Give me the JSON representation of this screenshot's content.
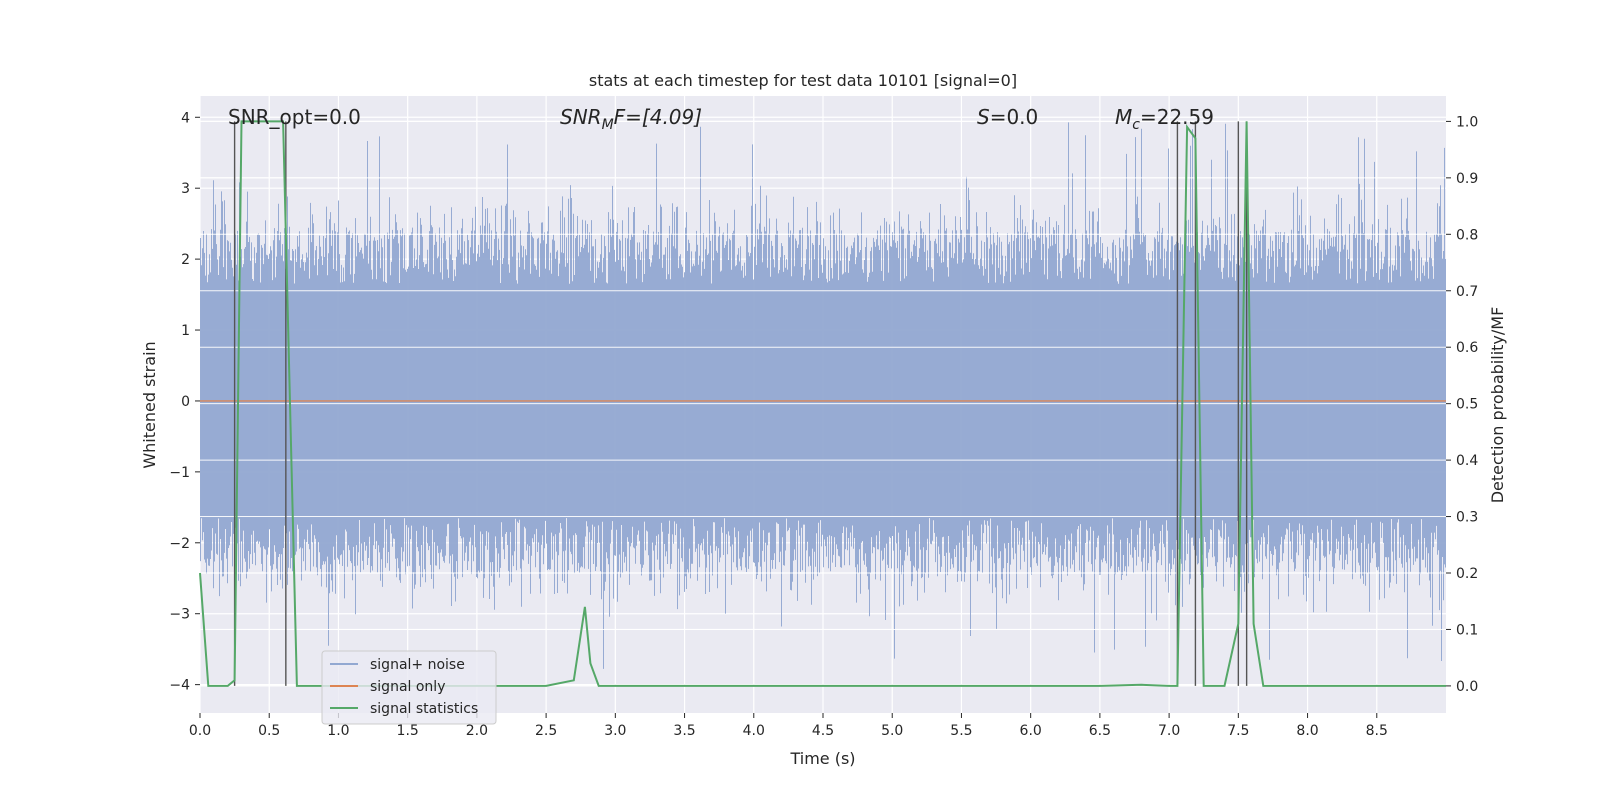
{
  "chart_data": {
    "type": "line",
    "title": "stats at each timestep for test data 10101 [signal=0]",
    "xlabel": "Time (s)",
    "ylabel": "Whitened strain",
    "ylabel_right": "Detection probability/MF",
    "xlim": [
      0.0,
      9.0
    ],
    "ylim": [
      -4.4,
      4.3
    ],
    "ylim_right": [
      -0.048,
      1.045
    ],
    "x_ticks": [
      0.0,
      0.5,
      1.0,
      1.5,
      2.0,
      2.5,
      3.0,
      3.5,
      4.0,
      4.5,
      5.0,
      5.5,
      6.0,
      6.5,
      7.0,
      7.5,
      8.0,
      8.5
    ],
    "x_tick_labels": [
      "0.0",
      "0.5",
      "1.0",
      "1.5",
      "2.0",
      "2.5",
      "3.0",
      "3.5",
      "4.0",
      "4.5",
      "5.0",
      "5.5",
      "6.0",
      "6.5",
      "7.0",
      "7.5",
      "8.0",
      "8.5"
    ],
    "y_ticks": [
      4,
      3,
      2,
      1,
      0,
      -1,
      -2,
      -3,
      -4
    ],
    "y_tick_labels": [
      "4",
      "3",
      "2",
      "1",
      "0",
      "−1",
      "−2",
      "−3",
      "−4"
    ],
    "y_right_ticks": [
      1.0,
      0.9,
      0.8,
      0.7,
      0.6,
      0.5,
      0.4,
      0.3,
      0.2,
      0.1,
      0.0
    ],
    "y_right_tick_labels": [
      "1.0",
      "0.9",
      "0.8",
      "0.7",
      "0.6",
      "0.5",
      "0.4",
      "0.3",
      "0.2",
      "0.1",
      "0.0"
    ],
    "grid": true,
    "legend_position": "lower-left",
    "annotations": {
      "snr_opt": "SNR_opt=0.0",
      "snr_mf_prefix": "SNR",
      "snr_mf_sub": "M",
      "snr_mf_suffix": "F=[4.09]",
      "s_prefix": "S",
      "s_value": "=0.0",
      "mc_prefix": "M",
      "mc_sub": "c",
      "mc_value": "=22.59"
    },
    "vertical_lines_x": [
      0.25,
      0.62,
      7.06,
      7.19,
      7.5,
      7.56
    ],
    "series": [
      {
        "name": "signal+ noise",
        "color": "#92a8d1",
        "band_envelope": {
          "x": [
            0.0,
            9.0
          ],
          "typical_peak_abs": 2.2,
          "max_positive": 3.95,
          "min_negative": -3.85
        }
      },
      {
        "name": "signal only",
        "color": "#dd8452",
        "x": [
          0.0,
          9.0
        ],
        "y": [
          0.0,
          0.0
        ]
      },
      {
        "name": "signal statistics",
        "color": "#55a868",
        "axis": "right",
        "x": [
          0.0,
          0.06,
          0.2,
          0.25,
          0.3,
          0.6,
          0.7,
          1.0,
          2.0,
          2.5,
          2.7,
          2.78,
          2.82,
          2.88,
          3.0,
          6.5,
          6.8,
          7.0,
          7.06,
          7.13,
          7.19,
          7.25,
          7.4,
          7.5,
          7.56,
          7.61,
          7.68,
          8.0,
          9.0
        ],
        "y": [
          0.2,
          0.0,
          0.0,
          0.01,
          1.0,
          1.0,
          0.0,
          0.0,
          0.0,
          0.0,
          0.01,
          0.14,
          0.04,
          0.0,
          0.0,
          0.0,
          0.002,
          0.0,
          0.0,
          0.99,
          0.97,
          0.0,
          0.0,
          0.11,
          1.0,
          0.11,
          0.0,
          0.0,
          0.0
        ]
      }
    ]
  }
}
